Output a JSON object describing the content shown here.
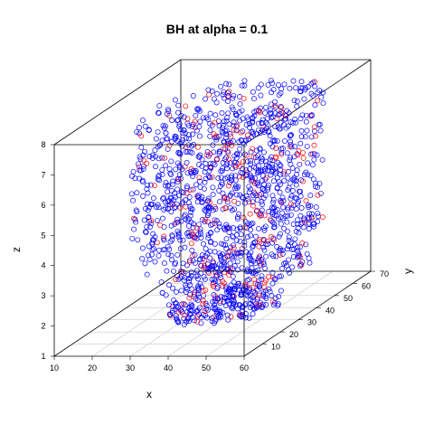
{
  "chart_data": {
    "type": "scatter3d",
    "title": "BH at alpha = 0.1",
    "xlabel": "x",
    "ylabel": "y",
    "zlabel": "z",
    "xlim": [
      10,
      60
    ],
    "ylim": [
      0,
      70
    ],
    "zlim": [
      1,
      8
    ],
    "x_ticks": [
      "10",
      "20",
      "30",
      "40",
      "50",
      "60"
    ],
    "y_ticks": [
      "10",
      "20",
      "30",
      "40",
      "50",
      "60",
      "70"
    ],
    "z_ticks": [
      "1",
      "2",
      "3",
      "4",
      "5",
      "6",
      "7",
      "8"
    ],
    "grid": "bottom plane",
    "colors": {
      "not_rejected": "#0000ff",
      "rejected": "#ff0000",
      "box": "#000000",
      "grid": "#c8c8c8"
    },
    "series": [
      {
        "color": "#0000ff",
        "marker": "open-circle"
      },
      {
        "color": "#ff0000",
        "marker": "open-circle"
      }
    ],
    "slices": [
      {
        "z": 1.5,
        "x_range": [
          27,
          54
        ],
        "y_range": [
          15,
          45
        ]
      },
      {
        "z": 2.5,
        "x_range": [
          25,
          58
        ],
        "y_range": [
          10,
          60
        ]
      },
      {
        "z": 3.5,
        "x_range": [
          20,
          60
        ],
        "y_range": [
          5,
          65
        ]
      },
      {
        "z": 4.5,
        "x_range": [
          17,
          60
        ],
        "y_range": [
          5,
          65
        ]
      },
      {
        "z": 5.5,
        "x_range": [
          17,
          60
        ],
        "y_range": [
          5,
          65
        ]
      },
      {
        "z": 6.5,
        "x_range": [
          17,
          60
        ],
        "y_range": [
          5,
          65
        ]
      },
      {
        "z": 7.5,
        "x_range": [
          17,
          60
        ],
        "y_range": [
          10,
          65
        ]
      }
    ]
  }
}
